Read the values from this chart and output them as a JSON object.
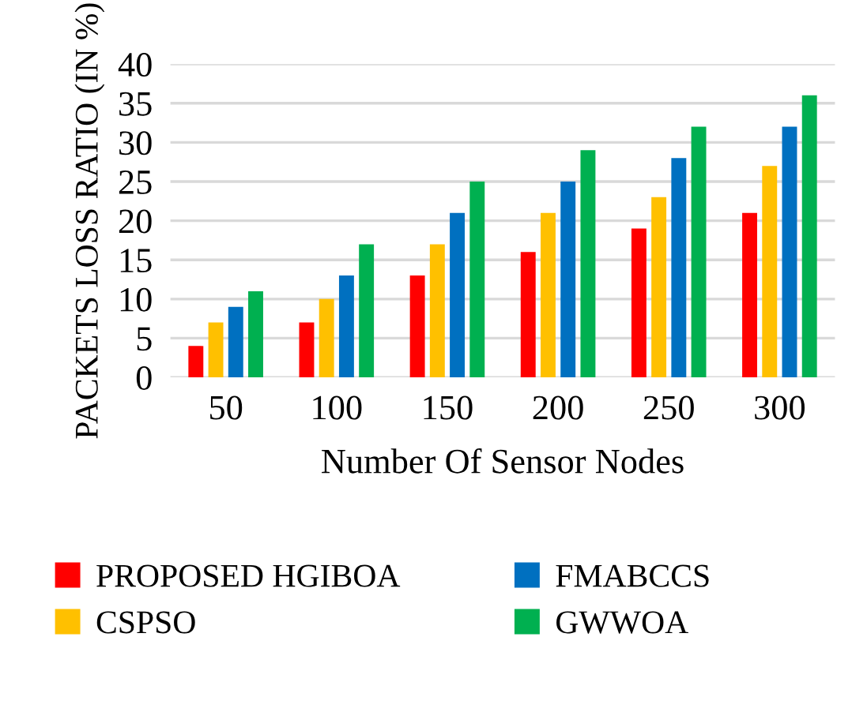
{
  "chart_data": {
    "type": "bar",
    "xlabel": "Number Of Sensor Nodes",
    "ylabel": "PACKETS LOSS RATIO (IN %)",
    "categories": [
      "50",
      "100",
      "150",
      "200",
      "250",
      "300"
    ],
    "series": [
      {
        "name": "PROPOSED HGIBOA",
        "color": "#ff0000",
        "values": [
          4,
          7,
          13,
          16,
          19,
          21
        ]
      },
      {
        "name": "CSPSO",
        "color": "#ffc000",
        "values": [
          7,
          10,
          17,
          21,
          23,
          27
        ]
      },
      {
        "name": "FMABCCS",
        "color": "#0070c0",
        "values": [
          9,
          13,
          21,
          25,
          28,
          32
        ]
      },
      {
        "name": "GWWOA",
        "color": "#00b050",
        "values": [
          11,
          17,
          25,
          29,
          32,
          36
        ]
      }
    ],
    "ylim": [
      0,
      40
    ],
    "yticks": [
      0,
      5,
      10,
      15,
      20,
      25,
      30,
      35,
      40
    ],
    "grid": "y",
    "legend": "bottom"
  }
}
